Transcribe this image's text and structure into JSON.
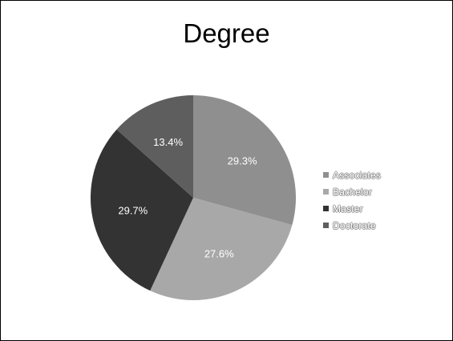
{
  "chart_data": {
    "type": "pie",
    "title": "Degree",
    "categories": [
      "Associates",
      "Bachelor",
      "Master",
      "Doctorate"
    ],
    "values": [
      29.3,
      27.6,
      29.7,
      13.4
    ],
    "labels": [
      "29.3%",
      "27.6%",
      "29.7%",
      "13.4%"
    ],
    "colors": [
      "#8f8f8f",
      "#a8a8a8",
      "#333333",
      "#5e5e5e"
    ],
    "label_color": "#ffffff",
    "legend_position": "right",
    "start_angle": "12 o'clock",
    "direction": "clockwise"
  }
}
